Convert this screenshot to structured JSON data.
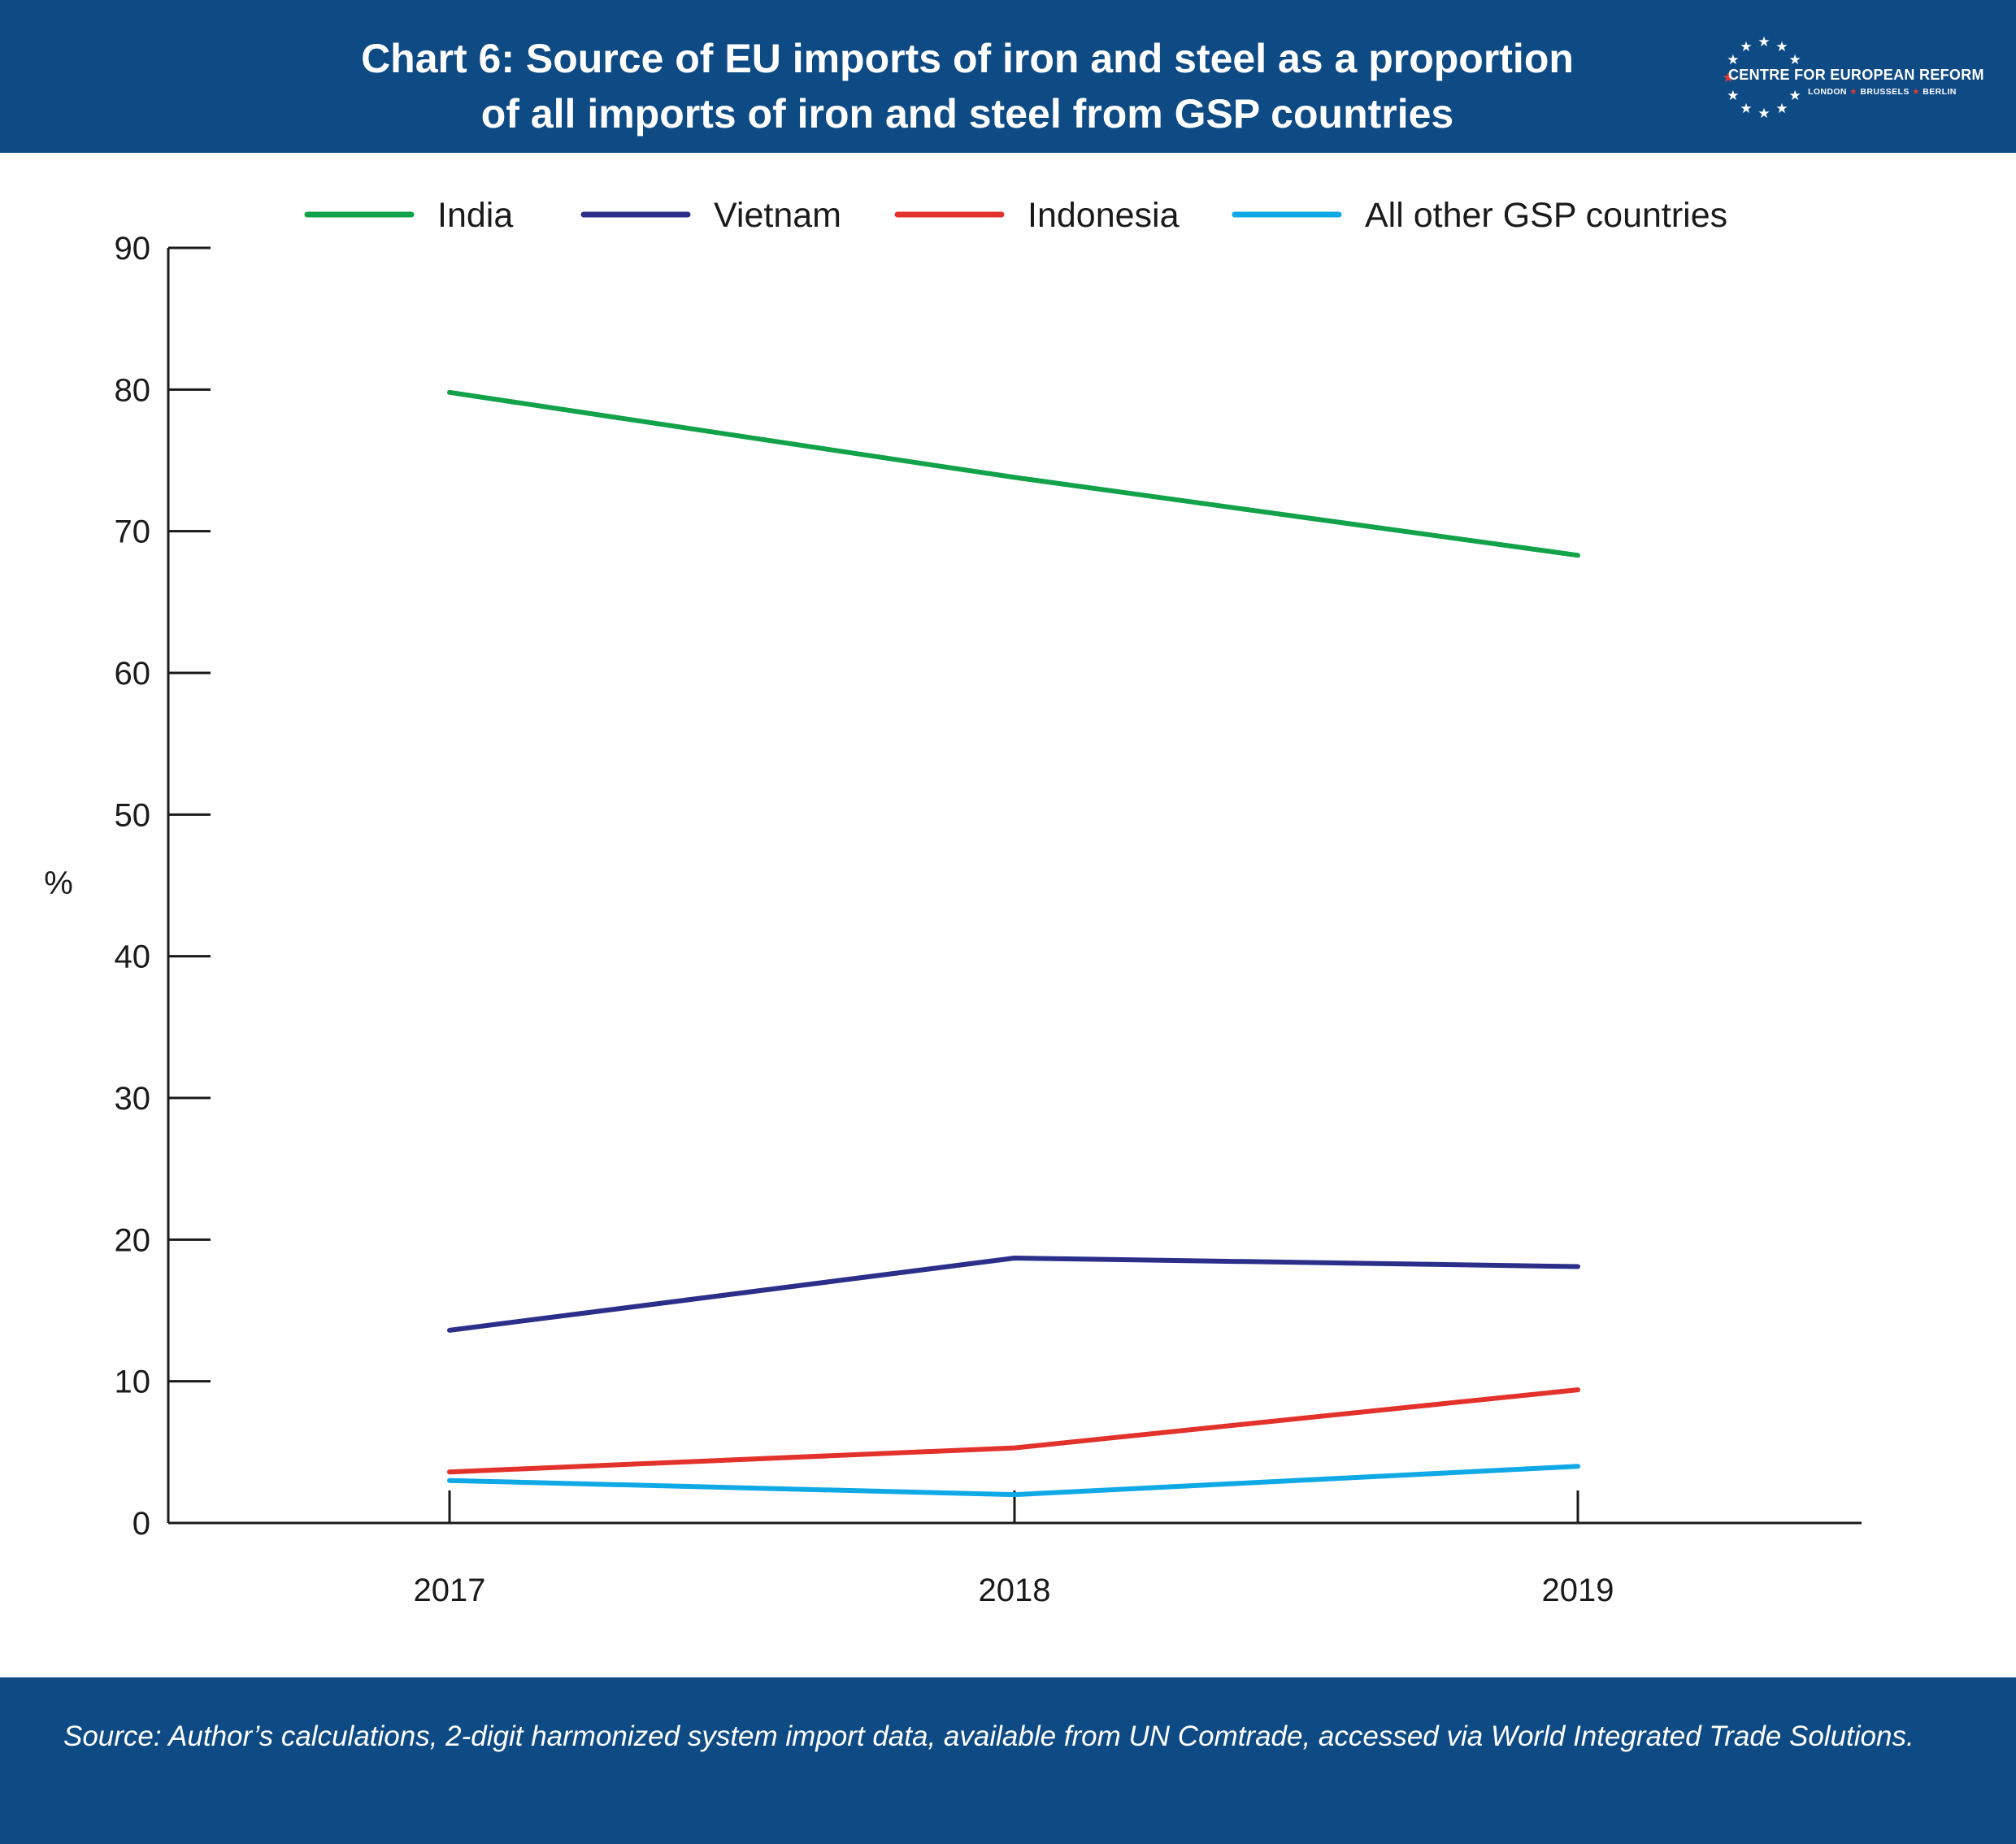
{
  "header": {
    "title_line1": "Chart 6: Source of EU imports of iron and steel as a proportion",
    "title_line2": "of all imports of iron and steel from GSP countries"
  },
  "logo": {
    "name": "CENTRE FOR EUROPEAN REFORM",
    "cities": [
      "LONDON",
      "BRUSSELS",
      "BERLIN"
    ],
    "colors": {
      "text": "#ffffff",
      "accent_star": "#e53935"
    }
  },
  "colors": {
    "banner": "#0e4a84",
    "axis": "#1a1a1a"
  },
  "chart_data": {
    "type": "line",
    "x": [
      "2017",
      "2018",
      "2019"
    ],
    "ylabel": "%",
    "ylim": [
      0,
      90
    ],
    "yticks": [
      0,
      10,
      20,
      30,
      40,
      50,
      60,
      70,
      80,
      90
    ],
    "grid": false,
    "legend_position": "top",
    "series": [
      {
        "name": "India",
        "color": "#12a24a",
        "values": [
          79.8,
          73.8,
          68.3
        ]
      },
      {
        "name": "Vietnam",
        "color": "#2b2f8a",
        "values": [
          13.6,
          18.7,
          18.1
        ]
      },
      {
        "name": "Indonesia",
        "color": "#e3322b",
        "values": [
          3.6,
          5.3,
          9.4
        ]
      },
      {
        "name": "All other GSP countries",
        "color": "#0fa9e6",
        "values": [
          3.0,
          2.0,
          4.0
        ]
      }
    ]
  },
  "footer": {
    "source": "Source: Author’s calculations, 2-digit harmonized system import data, available from UN Comtrade, accessed via World Integrated Trade Solutions."
  }
}
